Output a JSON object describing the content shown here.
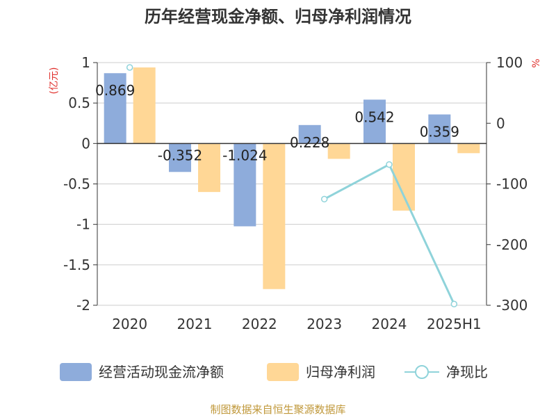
{
  "chart_data": {
    "type": "bar",
    "title": "历年经营现金净额、归母净利润情况",
    "y_left_unit": "(亿元)",
    "y_right_unit": "%",
    "categories": [
      "2020",
      "2021",
      "2022",
      "2023",
      "2024",
      "2025H1"
    ],
    "y_left_range": [
      -2,
      1
    ],
    "y_left_ticks": [
      "1",
      "0.5",
      "0",
      "-0.5",
      "-1",
      "-1.5",
      "-2"
    ],
    "y_left_tick_values": [
      1,
      0.5,
      0,
      -0.5,
      -1,
      -1.5,
      -2
    ],
    "y_right_range": [
      -300,
      100
    ],
    "y_right_ticks": [
      "100",
      "0",
      "-100",
      "-200",
      "-300"
    ],
    "y_right_tick_values": [
      100,
      0,
      -100,
      -200,
      -300
    ],
    "grid": true,
    "legend_position": "bottom",
    "series": [
      {
        "name": "经营活动现金流净额",
        "type": "bar",
        "axis": "left",
        "color": "#8eacdb",
        "values": [
          0.869,
          -0.352,
          -1.024,
          0.228,
          0.542,
          0.359
        ],
        "labels": [
          "0.869",
          "-0.352",
          "-1.024",
          "0.228",
          "0.542",
          "0.359"
        ]
      },
      {
        "name": "归母净利润",
        "type": "bar",
        "axis": "left",
        "color": "#ffd796",
        "values": [
          0.94,
          -0.6,
          -1.8,
          -0.19,
          -0.83,
          -0.12
        ]
      },
      {
        "name": "净现比",
        "type": "line",
        "axis": "right",
        "color": "#8fd3da",
        "values": [
          92,
          null,
          null,
          -125,
          -68,
          -298
        ]
      }
    ]
  },
  "source": "制图数据来自恒生聚源数据库"
}
